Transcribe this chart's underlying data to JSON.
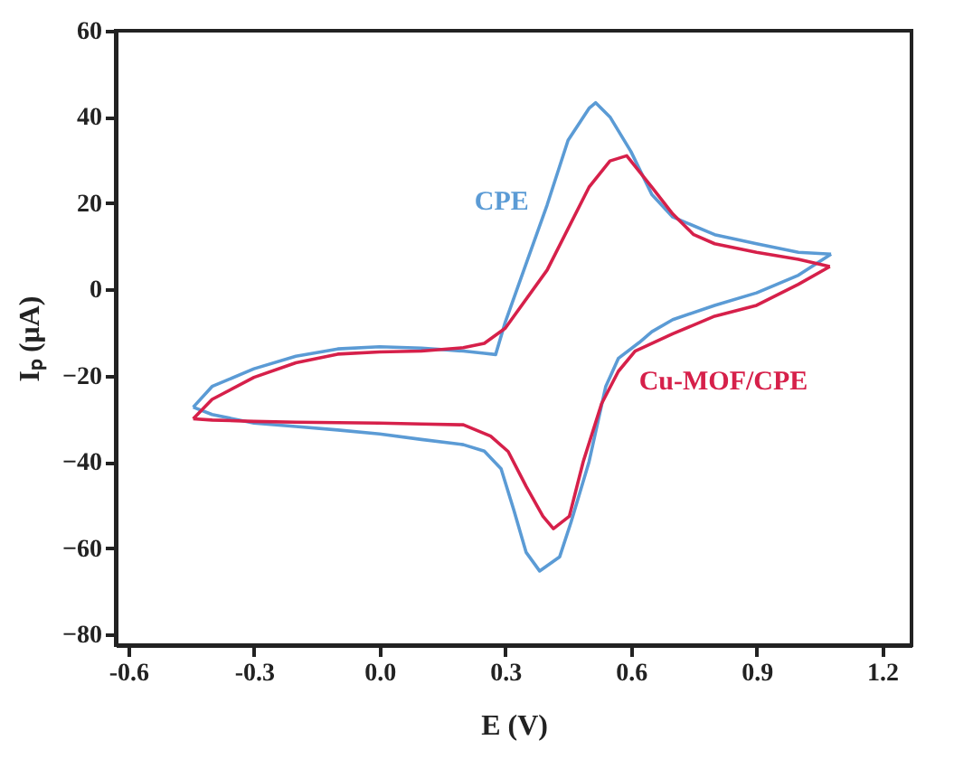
{
  "chart_data": {
    "type": "line",
    "xlabel": "E (V)",
    "ylabel": "Iₚ (μA)",
    "xlim": [
      -0.63,
      1.27
    ],
    "ylim": [
      -82.5,
      60
    ],
    "xticks": [
      {
        "value": -0.6,
        "label": "-0.6"
      },
      {
        "value": -0.3,
        "label": "-0.3"
      },
      {
        "value": 0,
        "label": "0.0"
      },
      {
        "value": 0.3,
        "label": "0.3"
      },
      {
        "value": 0.6,
        "label": "0.6"
      },
      {
        "value": 0.9,
        "label": "0.9"
      },
      {
        "value": 1.2,
        "label": "1.2"
      }
    ],
    "yticks": [
      -80,
      -60,
      -40,
      -20,
      0,
      20,
      40,
      60
    ],
    "grid": false,
    "legend": false,
    "marker": "none",
    "line_style": "solid",
    "series": [
      {
        "name": "CPE",
        "color": "#5b9bd5",
        "x": [
          -0.445,
          -0.4,
          -0.3,
          -0.2,
          -0.1,
          0.0,
          0.1,
          0.2,
          0.25,
          0.277,
          0.3,
          0.35,
          0.4,
          0.45,
          0.5,
          0.516,
          0.55,
          0.6,
          0.65,
          0.7,
          0.8,
          0.9,
          1.0,
          1.078
        ],
        "values": [
          -27.3,
          -22.5,
          -18.4,
          -15.5,
          -13.8,
          -13.3,
          -13.6,
          -14.3,
          -14.8,
          -15.1,
          -7.6,
          6,
          19.6,
          34.6,
          42,
          43.3,
          40,
          32,
          22,
          16.8,
          12.7,
          10.6,
          8.6,
          8.2
        ]
      },
      {
        "color": "#5b9bd5",
        "x": [
          1.078,
          1.0,
          0.9,
          0.8,
          0.7,
          0.65,
          0.62,
          0.57,
          0.54,
          0.5,
          0.457,
          0.43,
          0.382,
          0.35,
          0.32,
          0.29,
          0.25,
          0.2,
          0.1,
          0.0,
          -0.1,
          -0.2,
          -0.3,
          -0.4,
          -0.445
        ],
        "values": [
          8.2,
          3.3,
          -0.8,
          -3.7,
          -7,
          -9.8,
          -12.3,
          -16,
          -22.5,
          -40,
          -54,
          -62,
          -65.3,
          -61,
          -51,
          -41.6,
          -37.5,
          -36,
          -34.8,
          -33.5,
          -32.6,
          -31.8,
          -31,
          -29,
          -27.3
        ]
      },
      {
        "color": "#d6204a",
        "x": [
          -0.445,
          -0.4,
          -0.3,
          -0.2,
          -0.1,
          0.0,
          0.1,
          0.2,
          0.25,
          0.3,
          0.4,
          0.5,
          0.55,
          0.59,
          0.65,
          0.7,
          0.75,
          0.8,
          0.9,
          1.0,
          1.075
        ],
        "values": [
          -30,
          -25.5,
          -20.4,
          -17,
          -15,
          -14.5,
          -14.3,
          -13.5,
          -12.5,
          -9,
          4.5,
          23.7,
          29.8,
          31,
          23.7,
          17.5,
          12.7,
          10.6,
          8.6,
          7,
          5.3
        ]
      },
      {
        "name": "Cu-MOF/CPE",
        "color": "#d6204a",
        "x": [
          1.075,
          1.0,
          0.9,
          0.8,
          0.7,
          0.61,
          0.57,
          0.53,
          0.486,
          0.453,
          0.415,
          0.39,
          0.35,
          0.307,
          0.265,
          0.2,
          0.1,
          0.0,
          -0.1,
          -0.2,
          -0.3,
          -0.4,
          -0.445
        ],
        "values": [
          5.3,
          1.2,
          -3.7,
          -6.2,
          -10.3,
          -14.3,
          -19,
          -26.5,
          -40,
          -52.6,
          -55.5,
          -52.6,
          -45.7,
          -37.6,
          -34,
          -31.4,
          -31.2,
          -31,
          -30.9,
          -30.8,
          -30.6,
          -30.3,
          -30
        ]
      }
    ]
  }
}
